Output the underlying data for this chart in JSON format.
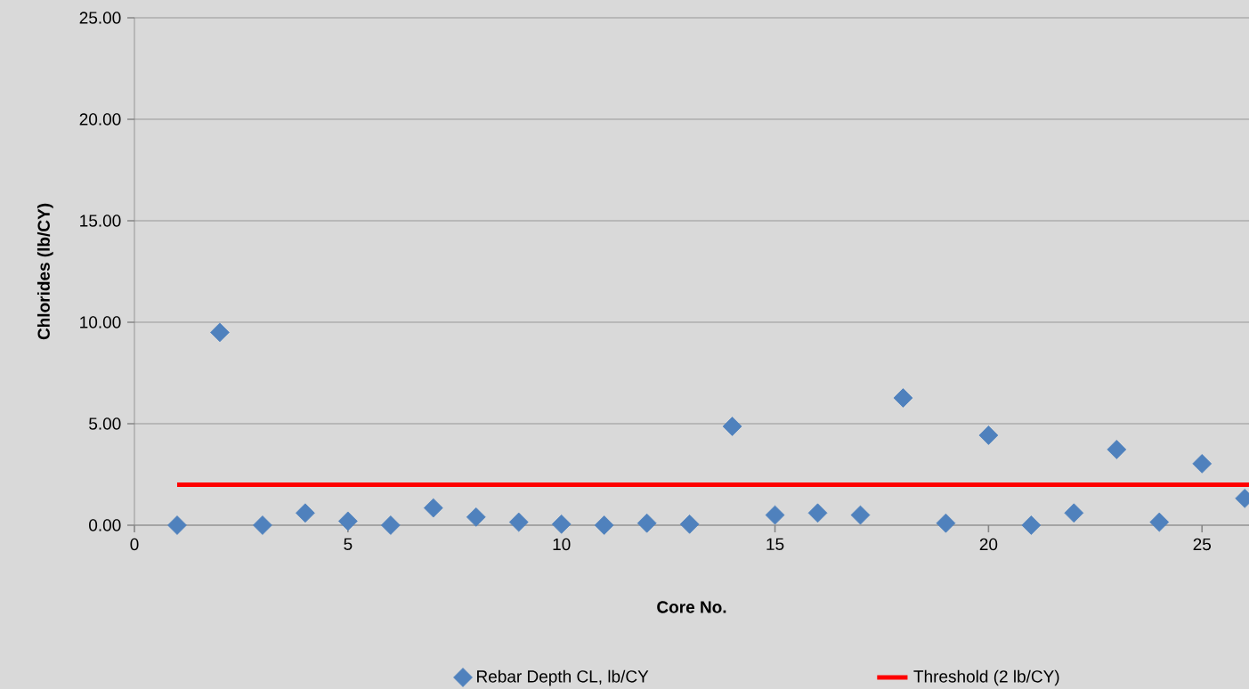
{
  "chart_data": {
    "type": "scatter",
    "xlabel": "Core No.",
    "ylabel": "Chlorides (lb/CY)",
    "x": [
      1,
      2,
      3,
      4,
      5,
      6,
      7,
      8,
      9,
      10,
      11,
      12,
      13,
      14,
      15,
      16,
      17,
      18,
      19,
      20,
      21,
      22,
      23,
      24,
      25,
      26
    ],
    "series": [
      {
        "name": "Rebar Depth CL, lb/CY",
        "color": "#4f81bd",
        "marker": "diamond",
        "values": [
          0.0,
          9.5,
          0.0,
          0.6,
          0.2,
          0.0,
          0.85,
          0.4,
          0.15,
          0.05,
          0.0,
          0.1,
          0.05,
          4.87,
          0.5,
          0.6,
          0.5,
          6.27,
          0.1,
          4.43,
          0.0,
          0.6,
          3.73,
          0.15,
          3.03,
          1.32
        ]
      },
      {
        "name": "Threshold (2 lb/CY)",
        "type": "line",
        "color": "#ff0000",
        "marker": "none",
        "line_style": "solid",
        "x": [
          1,
          26.1
        ],
        "values": [
          2,
          2
        ]
      }
    ],
    "xlim": [
      0,
      26.1
    ],
    "xticks": [
      0,
      5,
      10,
      15,
      20,
      25
    ],
    "ylim": [
      0,
      25
    ],
    "yticks": [
      {
        "value": 0,
        "label": "0.00"
      },
      {
        "value": 5,
        "label": "5.00"
      },
      {
        "value": 10,
        "label": "10.00"
      },
      {
        "value": 15,
        "label": "15.00"
      },
      {
        "value": 20,
        "label": "20.00"
      },
      {
        "value": 25,
        "label": "25.00"
      }
    ],
    "grid": "y",
    "legend": "bottom"
  }
}
